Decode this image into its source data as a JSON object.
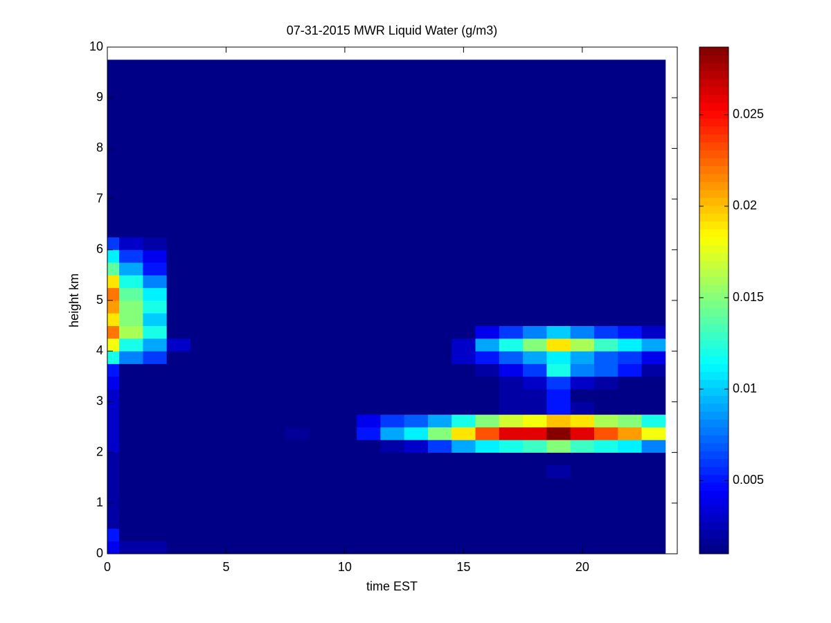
{
  "chart_data": {
    "type": "heatmap",
    "title": "07-31-2015 MWR Liquid Water (g/m3)",
    "x_label": "time EST",
    "y_label": "height km",
    "xlim": [
      0,
      24
    ],
    "ylim": [
      0,
      10
    ],
    "xticks": [
      0,
      5,
      10,
      15,
      20
    ],
    "yticks": [
      0,
      1,
      2,
      3,
      4,
      5,
      6,
      7,
      8,
      9,
      10
    ],
    "colormap": "jet",
    "colorbar": {
      "clim": [
        0.001,
        0.0287
      ],
      "ticks": [
        0.005,
        0.01,
        0.015,
        0.02,
        0.025
      ]
    },
    "x_edges": [
      0,
      0.5,
      1.5,
      2.5,
      3.5,
      4.5,
      5.5,
      6.5,
      7.5,
      8.5,
      9.5,
      10.5,
      11.5,
      12.5,
      13.5,
      14.5,
      15.5,
      16.5,
      17.5,
      18.5,
      19.5,
      20.5,
      21.5,
      22.5,
      23.5
    ],
    "y_edges": [
      0,
      0.25,
      0.5,
      0.75,
      1,
      1.25,
      1.5,
      1.75,
      2,
      2.25,
      2.5,
      2.75,
      3,
      3.25,
      3.5,
      3.75,
      4,
      4.25,
      4.5,
      4.75,
      5,
      5.25,
      5.5,
      5.75,
      6,
      6.25,
      6.5,
      6.75,
      7,
      9.75
    ],
    "z": [
      [
        0.004,
        0.002,
        0.002,
        0.0012,
        0.0012,
        0.0012,
        0.0012,
        0.0012,
        0.0012,
        0.0012,
        0.0012,
        0.0012,
        0.0012,
        0.0012,
        0.0012,
        0.0012,
        0.0012,
        0.0012,
        0.0012,
        0.0012,
        0.0012,
        0.0012,
        0.0012,
        0.0012
      ],
      [
        0.005,
        0.0012,
        0.0012,
        0.0012,
        0.0012,
        0.0012,
        0.0012,
        0.0012,
        0.0012,
        0.0012,
        0.0012,
        0.0012,
        0.0012,
        0.0012,
        0.0012,
        0.0012,
        0.0012,
        0.0012,
        0.0012,
        0.0012,
        0.0012,
        0.0012,
        0.0012,
        0.0012
      ],
      [
        0.002,
        0.0012,
        0.0012,
        0.0012,
        0.0012,
        0.0012,
        0.0012,
        0.0012,
        0.0012,
        0.0012,
        0.0012,
        0.0012,
        0.0012,
        0.0012,
        0.0012,
        0.0012,
        0.0012,
        0.0012,
        0.0012,
        0.0012,
        0.0012,
        0.0012,
        0.0012,
        0.0012
      ],
      [
        0.002,
        0.0012,
        0.0012,
        0.0012,
        0.0012,
        0.0012,
        0.0012,
        0.0012,
        0.0012,
        0.0012,
        0.0012,
        0.0012,
        0.0012,
        0.0012,
        0.0012,
        0.0012,
        0.0012,
        0.0012,
        0.0012,
        0.0012,
        0.0012,
        0.0012,
        0.0012,
        0.0012
      ],
      [
        0.002,
        0.0012,
        0.0012,
        0.0012,
        0.0012,
        0.0012,
        0.0012,
        0.0012,
        0.0012,
        0.0012,
        0.0012,
        0.0012,
        0.0012,
        0.0012,
        0.0012,
        0.0012,
        0.0012,
        0.0012,
        0.0012,
        0.0012,
        0.0012,
        0.0012,
        0.0012,
        0.0012
      ],
      [
        0.002,
        0.0012,
        0.0012,
        0.0012,
        0.0012,
        0.0012,
        0.0012,
        0.0012,
        0.0012,
        0.0012,
        0.0012,
        0.0012,
        0.0012,
        0.0012,
        0.0012,
        0.0012,
        0.0012,
        0.0012,
        0.0012,
        0.0012,
        0.0012,
        0.0012,
        0.0012,
        0.0012
      ],
      [
        0.002,
        0.0012,
        0.0012,
        0.0012,
        0.0012,
        0.0012,
        0.0012,
        0.0012,
        0.0012,
        0.0012,
        0.0012,
        0.0012,
        0.0012,
        0.0012,
        0.0012,
        0.0012,
        0.0012,
        0.0012,
        0.0012,
        0.002,
        0.0012,
        0.0012,
        0.0012,
        0.0012
      ],
      [
        0.002,
        0.0012,
        0.0012,
        0.0012,
        0.0012,
        0.0012,
        0.0012,
        0.0012,
        0.0012,
        0.0012,
        0.0012,
        0.0012,
        0.0012,
        0.0012,
        0.0012,
        0.0012,
        0.0012,
        0.0012,
        0.0012,
        0.0012,
        0.0012,
        0.0012,
        0.0012,
        0.0012
      ],
      [
        0.003,
        0.0012,
        0.0012,
        0.0012,
        0.0012,
        0.0012,
        0.0012,
        0.0012,
        0.0012,
        0.0012,
        0.0012,
        0.0012,
        0.002,
        0.003,
        0.006,
        0.009,
        0.011,
        0.012,
        0.013,
        0.015,
        0.013,
        0.012,
        0.011,
        0.008
      ],
      [
        0.003,
        0.0012,
        0.0012,
        0.0012,
        0.0012,
        0.0012,
        0.0012,
        0.0012,
        0.0017,
        0.0012,
        0.0012,
        0.005,
        0.009,
        0.011,
        0.015,
        0.019,
        0.023,
        0.026,
        0.026,
        0.0285,
        0.026,
        0.023,
        0.021,
        0.018
      ],
      [
        0.003,
        0.0012,
        0.0012,
        0.0012,
        0.0012,
        0.0012,
        0.0012,
        0.0012,
        0.0012,
        0.0012,
        0.0012,
        0.004,
        0.006,
        0.007,
        0.009,
        0.012,
        0.015,
        0.017,
        0.018,
        0.02,
        0.019,
        0.016,
        0.015,
        0.012
      ],
      [
        0.003,
        0.0012,
        0.0012,
        0.0012,
        0.0012,
        0.0012,
        0.0012,
        0.0012,
        0.0012,
        0.0012,
        0.0012,
        0.0012,
        0.0012,
        0.0012,
        0.0012,
        0.0012,
        0.0012,
        0.002,
        0.002,
        0.005,
        0.002,
        0.0012,
        0.0012,
        0.0012
      ],
      [
        0.003,
        0.0012,
        0.0012,
        0.0012,
        0.0012,
        0.0012,
        0.0012,
        0.0012,
        0.0012,
        0.0012,
        0.0012,
        0.0012,
        0.0012,
        0.0012,
        0.0012,
        0.0012,
        0.0012,
        0.002,
        0.002,
        0.005,
        0.0012,
        0.0012,
        0.0012,
        0.0012
      ],
      [
        0.004,
        0.0012,
        0.0012,
        0.0012,
        0.0012,
        0.0012,
        0.0012,
        0.0012,
        0.0012,
        0.0012,
        0.0012,
        0.0012,
        0.0012,
        0.0012,
        0.0012,
        0.0012,
        0.0012,
        0.002,
        0.003,
        0.006,
        0.003,
        0.002,
        0.0012,
        0.0012
      ],
      [
        0.005,
        0.0012,
        0.0012,
        0.0012,
        0.0012,
        0.0012,
        0.0012,
        0.0012,
        0.0012,
        0.0012,
        0.0012,
        0.0012,
        0.0012,
        0.0012,
        0.0012,
        0.0012,
        0.002,
        0.004,
        0.006,
        0.012,
        0.008,
        0.007,
        0.005,
        0.002
      ],
      [
        0.012,
        0.008,
        0.006,
        0.0012,
        0.0012,
        0.0012,
        0.0012,
        0.0012,
        0.0012,
        0.0012,
        0.0012,
        0.0012,
        0.0012,
        0.0012,
        0.0012,
        0.003,
        0.005,
        0.007,
        0.009,
        0.011,
        0.009,
        0.007,
        0.006,
        0.004
      ],
      [
        0.018,
        0.012,
        0.009,
        0.003,
        0.0012,
        0.0012,
        0.0012,
        0.0012,
        0.0012,
        0.0012,
        0.0012,
        0.0012,
        0.0012,
        0.0012,
        0.0012,
        0.003,
        0.009,
        0.012,
        0.015,
        0.019,
        0.016,
        0.013,
        0.011,
        0.009
      ],
      [
        0.022,
        0.016,
        0.012,
        0.0012,
        0.0012,
        0.0012,
        0.0012,
        0.0012,
        0.0012,
        0.0012,
        0.0012,
        0.0012,
        0.0012,
        0.0012,
        0.0012,
        0.0012,
        0.004,
        0.006,
        0.008,
        0.01,
        0.008,
        0.006,
        0.005,
        0.003
      ],
      [
        0.019,
        0.015,
        0.01,
        0.0012,
        0.0012,
        0.0012,
        0.0012,
        0.0012,
        0.0012,
        0.0012,
        0.0012,
        0.0012,
        0.0012,
        0.0012,
        0.0012,
        0.0012,
        0.0012,
        0.0012,
        0.0012,
        0.0012,
        0.0012,
        0.0012,
        0.0012,
        0.0012
      ],
      [
        0.021,
        0.015,
        0.012,
        0.0012,
        0.0012,
        0.0012,
        0.0012,
        0.0012,
        0.0012,
        0.0012,
        0.0012,
        0.0012,
        0.0012,
        0.0012,
        0.0012,
        0.0012,
        0.0012,
        0.0012,
        0.0012,
        0.0012,
        0.0012,
        0.0012,
        0.0012,
        0.0012
      ],
      [
        0.022,
        0.014,
        0.011,
        0.0012,
        0.0012,
        0.0012,
        0.0012,
        0.0012,
        0.0012,
        0.0012,
        0.0012,
        0.0012,
        0.0012,
        0.0012,
        0.0012,
        0.0012,
        0.0012,
        0.0012,
        0.0012,
        0.0012,
        0.0012,
        0.0012,
        0.0012,
        0.0012
      ],
      [
        0.019,
        0.012,
        0.008,
        0.0012,
        0.0012,
        0.0012,
        0.0012,
        0.0012,
        0.0012,
        0.0012,
        0.0012,
        0.0012,
        0.0012,
        0.0012,
        0.0012,
        0.0012,
        0.0012,
        0.0012,
        0.0012,
        0.0012,
        0.0012,
        0.0012,
        0.0012,
        0.0012
      ],
      [
        0.014,
        0.009,
        0.005,
        0.0012,
        0.0012,
        0.0012,
        0.0012,
        0.0012,
        0.0012,
        0.0012,
        0.0012,
        0.0012,
        0.0012,
        0.0012,
        0.0012,
        0.0012,
        0.0012,
        0.0012,
        0.0012,
        0.0012,
        0.0012,
        0.0012,
        0.0012,
        0.0012
      ],
      [
        0.011,
        0.006,
        0.004,
        0.0012,
        0.0012,
        0.0012,
        0.0012,
        0.0012,
        0.0012,
        0.0012,
        0.0012,
        0.0012,
        0.0012,
        0.0012,
        0.0012,
        0.0012,
        0.0012,
        0.0012,
        0.0012,
        0.0012,
        0.0012,
        0.0012,
        0.0012,
        0.0012
      ],
      [
        0.006,
        0.003,
        0.002,
        0.0012,
        0.0012,
        0.0012,
        0.0012,
        0.0012,
        0.0012,
        0.0012,
        0.0012,
        0.0012,
        0.0012,
        0.0012,
        0.0012,
        0.0012,
        0.0012,
        0.0012,
        0.0012,
        0.0012,
        0.0012,
        0.0012,
        0.0012,
        0.0012
      ],
      [
        0.0012,
        0.0012,
        0.0012,
        0.0012,
        0.0012,
        0.0012,
        0.0012,
        0.0012,
        0.0012,
        0.0012,
        0.0012,
        0.0012,
        0.0012,
        0.0012,
        0.0012,
        0.0012,
        0.0012,
        0.0012,
        0.0012,
        0.0012,
        0.0012,
        0.0012,
        0.0012,
        0.0012
      ],
      [
        0.0012,
        0.0012,
        0.0012,
        0.0012,
        0.0012,
        0.0012,
        0.0012,
        0.0012,
        0.0012,
        0.0012,
        0.0012,
        0.0012,
        0.0012,
        0.0012,
        0.0012,
        0.0012,
        0.0012,
        0.0012,
        0.0012,
        0.0012,
        0.0012,
        0.0012,
        0.0012,
        0.0012
      ],
      [
        0.0012,
        0.0012,
        0.0012,
        0.0012,
        0.0012,
        0.0012,
        0.0012,
        0.0012,
        0.0012,
        0.0012,
        0.0012,
        0.0012,
        0.0012,
        0.0012,
        0.0012,
        0.0012,
        0.0012,
        0.0012,
        0.0012,
        0.0012,
        0.0012,
        0.0012,
        0.0012,
        0.0012
      ],
      [
        0.0012,
        0.0012,
        0.0012,
        0.0012,
        0.0012,
        0.0012,
        0.0012,
        0.0012,
        0.0012,
        0.0012,
        0.0012,
        0.0012,
        0.0012,
        0.0012,
        0.0012,
        0.0012,
        0.0012,
        0.0012,
        0.0012,
        0.0012,
        0.0012,
        0.0012,
        0.0012,
        0.0012
      ]
    ]
  }
}
